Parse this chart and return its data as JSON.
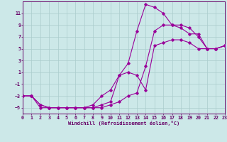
{
  "xlabel": "Windchill (Refroidissement éolien,°C)",
  "bg_color": "#cce8e8",
  "line_color": "#990099",
  "grid_color": "#aacccc",
  "axis_color": "#660066",
  "xlim": [
    0,
    23
  ],
  "ylim": [
    -6,
    13
  ],
  "xticks": [
    0,
    1,
    2,
    3,
    4,
    5,
    6,
    7,
    8,
    9,
    10,
    11,
    12,
    13,
    14,
    15,
    16,
    17,
    18,
    19,
    20,
    21,
    22,
    23
  ],
  "yticks": [
    -5,
    -3,
    -1,
    1,
    3,
    5,
    7,
    9,
    11
  ],
  "line1_x": [
    0,
    1,
    2,
    3,
    4,
    5,
    6,
    7,
    8,
    9,
    10,
    11,
    12,
    13,
    14,
    15,
    16,
    17,
    18,
    19,
    20,
    21,
    22,
    23
  ],
  "line1_y": [
    -3,
    -3,
    -5,
    -5,
    -5,
    -5,
    -5,
    -5,
    -5,
    -5,
    -4.5,
    -4,
    -3,
    -2.5,
    2,
    8,
    9,
    9,
    8.5,
    7.5,
    7.5,
    5,
    5,
    5.5
  ],
  "line2_x": [
    0,
    1,
    2,
    3,
    4,
    5,
    6,
    7,
    8,
    9,
    10,
    11,
    12,
    13,
    14,
    15,
    16,
    17,
    18,
    19,
    20,
    21,
    22,
    23
  ],
  "line2_y": [
    -3,
    -3,
    -4.5,
    -5,
    -5,
    -5,
    -5,
    -5,
    -5,
    -4.5,
    -4,
    0.5,
    2.5,
    8,
    12.5,
    12,
    11,
    9,
    9,
    8.5,
    7,
    5,
    5,
    5.5
  ],
  "line3_x": [
    0,
    1,
    2,
    3,
    4,
    5,
    6,
    7,
    8,
    9,
    10,
    11,
    12,
    13,
    14,
    15,
    16,
    17,
    18,
    19,
    20,
    21,
    22,
    23
  ],
  "line3_y": [
    -3,
    -3,
    -4.5,
    -5,
    -5,
    -5,
    -5,
    -5,
    -4.5,
    -3,
    -2,
    0.5,
    1,
    0.5,
    -2,
    5.5,
    6,
    6.5,
    6.5,
    6,
    5,
    5,
    5,
    5.5
  ]
}
